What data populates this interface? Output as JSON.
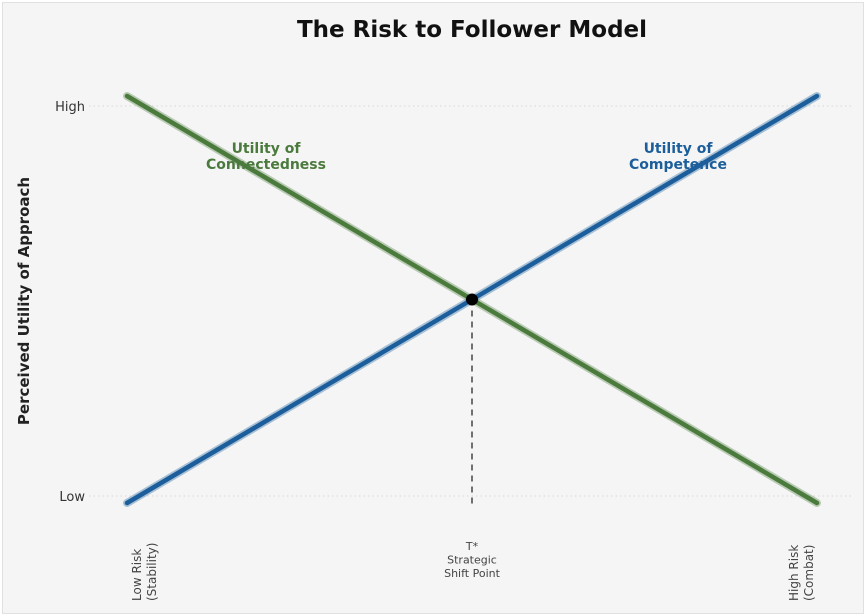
{
  "chart_data": {
    "type": "line",
    "title": "The Risk to Follower Model",
    "ylabel": "Perceived Utility of Approach",
    "xlabel": "",
    "y_ticks": [
      "High",
      "Low"
    ],
    "x_ticks": [
      {
        "lines": [
          "Low Risk",
          "(Stability)"
        ]
      },
      {
        "lines": [
          "T*",
          "Strategic",
          "Shift Point"
        ]
      },
      {
        "lines": [
          "High Risk",
          "(Combat)"
        ]
      }
    ],
    "x": [
      0,
      1
    ],
    "xlim": [
      0,
      1
    ],
    "ylim": [
      0,
      1
    ],
    "series": [
      {
        "name": "Utility of Connectedness",
        "label_lines": [
          "Utility of",
          "Connectedness"
        ],
        "color": "#4a7a3c",
        "values": [
          1,
          0
        ]
      },
      {
        "name": "Utility of Competence",
        "label_lines": [
          "Utility of",
          "Competence"
        ],
        "color": "#1b5e9b",
        "values": [
          0,
          1
        ]
      }
    ],
    "intersection": {
      "x": 0.5,
      "y": 0.5
    },
    "grid": "horizontal dotted at High and Low",
    "ytick_values": [
      1,
      0
    ]
  }
}
